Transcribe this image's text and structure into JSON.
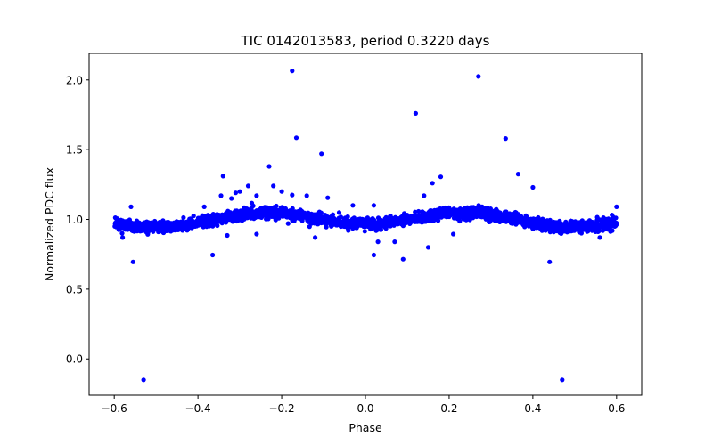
{
  "chart_data": {
    "type": "scatter",
    "title": "TIC 0142013583, period 0.3220 days",
    "xlabel": "Phase",
    "ylabel": "Normalized PDC flux",
    "xlim": [
      -0.66,
      0.66
    ],
    "ylim": [
      -0.26,
      2.19
    ],
    "xticks": [
      -0.6,
      -0.4,
      -0.2,
      0.0,
      0.2,
      0.4,
      0.6
    ],
    "xtick_labels": [
      "−0.6",
      "−0.4",
      "−0.2",
      "0.0",
      "0.2",
      "0.4",
      "0.6"
    ],
    "yticks": [
      0.0,
      0.5,
      1.0,
      1.5,
      2.0
    ],
    "ytick_labels": [
      "0.0",
      "0.5",
      "1.0",
      "1.5",
      "2.0"
    ],
    "marker_color": "#0000ff",
    "trend": {
      "description": "dense phase-folded light curve, mean flux ~1.0 with double-humped modulation",
      "phase_range": [
        -0.6,
        0.6
      ],
      "baseline": 1.0,
      "amplitude": 0.045,
      "scatter": 0.02
    },
    "outliers": [
      {
        "x": -0.53,
        "y": -0.15
      },
      {
        "x": 0.47,
        "y": -0.15
      },
      {
        "x": -0.555,
        "y": 0.695
      },
      {
        "x": 0.44,
        "y": 0.695
      },
      {
        "x": -0.365,
        "y": 0.745
      },
      {
        "x": 0.02,
        "y": 0.745
      },
      {
        "x": 0.09,
        "y": 0.715
      },
      {
        "x": 0.15,
        "y": 0.8
      },
      {
        "x": -0.175,
        "y": 2.065
      },
      {
        "x": 0.27,
        "y": 2.025
      },
      {
        "x": 0.12,
        "y": 1.76
      },
      {
        "x": -0.165,
        "y": 1.585
      },
      {
        "x": -0.105,
        "y": 1.47
      },
      {
        "x": 0.335,
        "y": 1.58
      },
      {
        "x": -0.34,
        "y": 1.31
      },
      {
        "x": -0.23,
        "y": 1.38
      },
      {
        "x": 0.365,
        "y": 1.325
      },
      {
        "x": 0.18,
        "y": 1.305
      },
      {
        "x": -0.22,
        "y": 1.24
      },
      {
        "x": -0.28,
        "y": 1.24
      },
      {
        "x": 0.16,
        "y": 1.26
      },
      {
        "x": 0.4,
        "y": 1.23
      },
      {
        "x": -0.3,
        "y": 1.2
      },
      {
        "x": 0.14,
        "y": 1.17
      },
      {
        "x": -0.31,
        "y": 1.19
      },
      {
        "x": -0.345,
        "y": 1.17
      },
      {
        "x": -0.2,
        "y": 1.2
      },
      {
        "x": -0.14,
        "y": 1.17
      },
      {
        "x": -0.175,
        "y": 1.175
      },
      {
        "x": -0.26,
        "y": 1.17
      },
      {
        "x": -0.32,
        "y": 1.15
      },
      {
        "x": -0.09,
        "y": 1.155
      },
      {
        "x": 0.02,
        "y": 1.1
      },
      {
        "x": -0.03,
        "y": 1.1
      },
      {
        "x": -0.385,
        "y": 1.09
      },
      {
        "x": -0.56,
        "y": 1.09
      },
      {
        "x": 0.6,
        "y": 1.09
      },
      {
        "x": -0.33,
        "y": 0.885
      },
      {
        "x": -0.26,
        "y": 0.895
      },
      {
        "x": 0.03,
        "y": 0.84
      },
      {
        "x": 0.07,
        "y": 0.84
      },
      {
        "x": -0.12,
        "y": 0.87
      },
      {
        "x": 0.21,
        "y": 0.895
      },
      {
        "x": -0.58,
        "y": 0.87
      },
      {
        "x": 0.56,
        "y": 0.87
      }
    ]
  }
}
